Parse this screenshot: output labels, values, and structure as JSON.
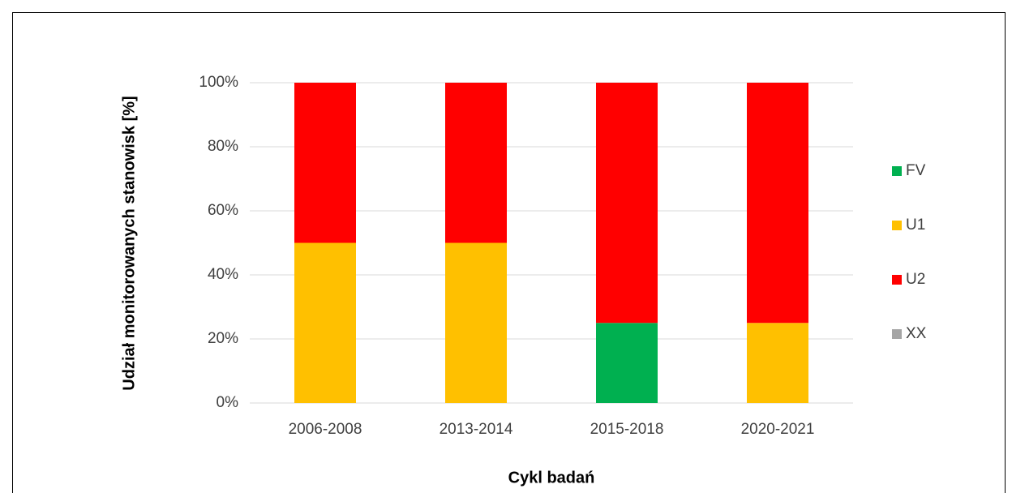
{
  "chart_data": {
    "type": "stacked_bar",
    "y_label": "Udział monitorowanych stanowisk [%]",
    "x_label": "Cykl badań",
    "categories": [
      "2006-2008",
      "2013-2014",
      "2015-2018",
      "2020-2021"
    ],
    "series": [
      {
        "name": "FV",
        "color": "#00b050",
        "values": [
          0,
          0,
          25,
          0
        ]
      },
      {
        "name": "U1",
        "color": "#ffc000",
        "values": [
          50,
          50,
          0,
          25
        ]
      },
      {
        "name": "U2",
        "color": "#ff0000",
        "values": [
          50,
          50,
          75,
          75
        ]
      },
      {
        "name": "XX",
        "color": "#a5a5a5",
        "values": [
          0,
          0,
          0,
          0
        ]
      }
    ],
    "ylim": [
      0,
      100
    ],
    "yticks": [
      {
        "value": 0,
        "label": "0%"
      },
      {
        "value": 20,
        "label": "20%"
      },
      {
        "value": 40,
        "label": "40%"
      },
      {
        "value": 60,
        "label": "60%"
      },
      {
        "value": 80,
        "label": "80%"
      },
      {
        "value": 100,
        "label": "100%"
      }
    ],
    "grid": true,
    "legend": "right"
  }
}
